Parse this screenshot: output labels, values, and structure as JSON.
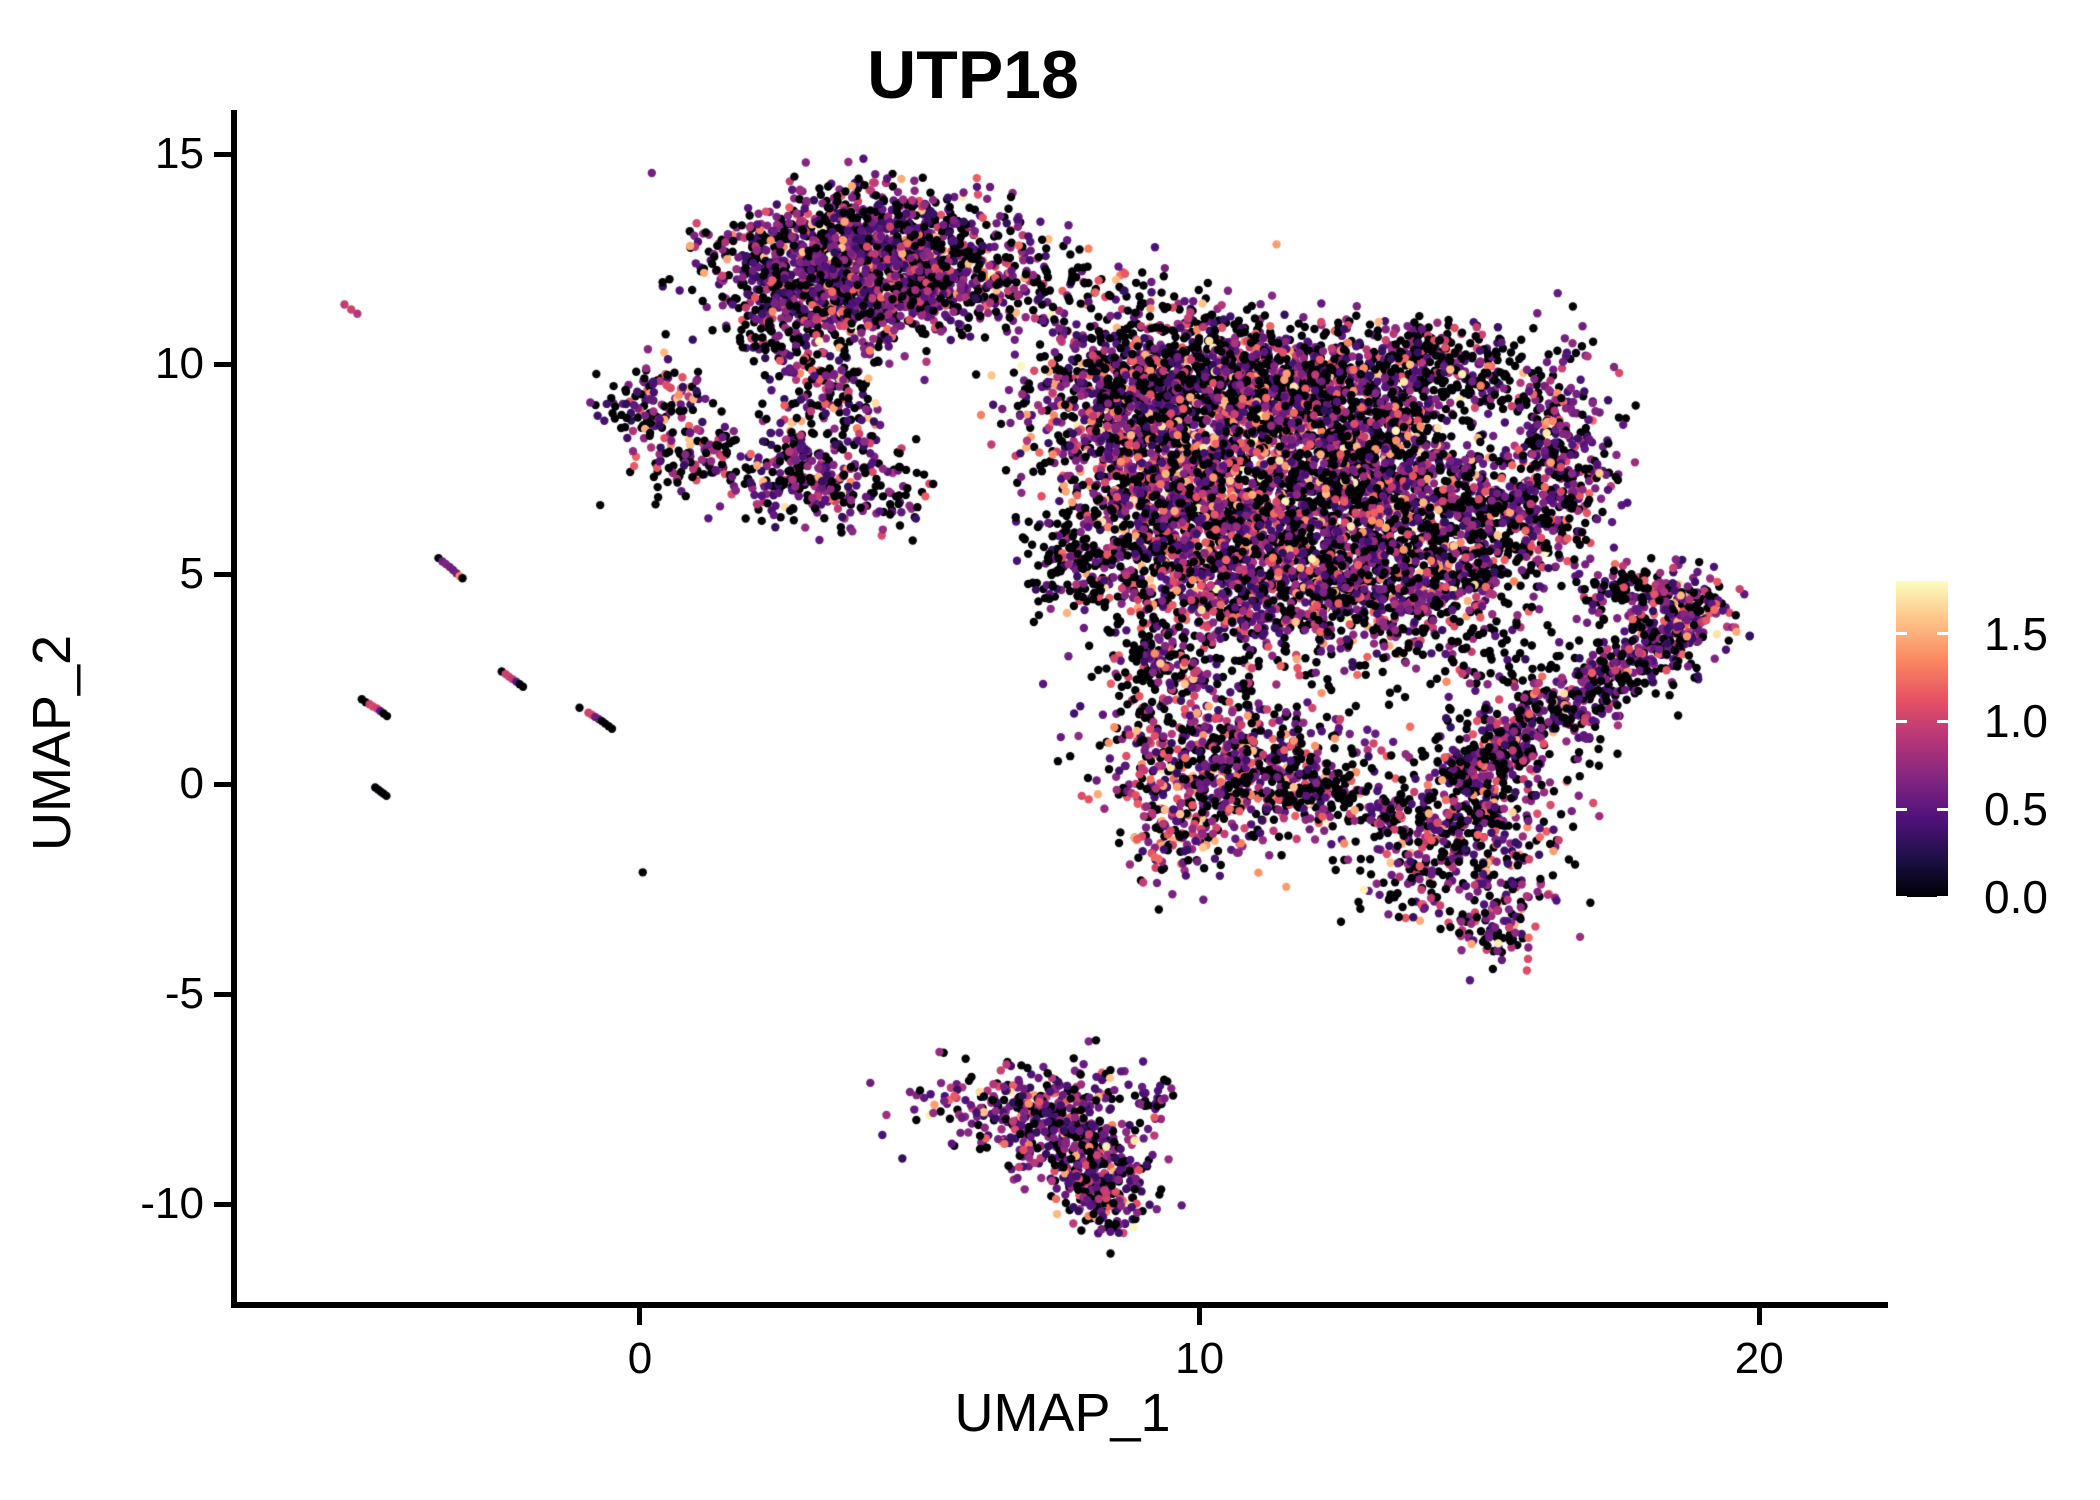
{
  "title": "UTP18",
  "axes": {
    "x": {
      "label": "UMAP_1",
      "tick_labels": [
        "0",
        "10",
        "20"
      ],
      "tick_values": [
        0,
        10,
        20
      ],
      "range": [
        -7.2,
        22.3
      ]
    },
    "y": {
      "label": "UMAP_2",
      "tick_labels": [
        "15",
        "10",
        "5",
        "0",
        "-5",
        "-10"
      ],
      "tick_values": [
        15,
        10,
        5,
        0,
        -5,
        -10
      ],
      "range": [
        -12.33,
        16.05
      ]
    }
  },
  "legend": {
    "tick_labels": [
      "1.5",
      "1.0",
      "0.5",
      "0.0"
    ],
    "tick_values": [
      1.5,
      1.0,
      0.5,
      0.0
    ],
    "domain": [
      0,
      1.8
    ],
    "colormap": "magma",
    "stops": [
      [
        0,
        "#000004"
      ],
      [
        0.125,
        "#1d1147"
      ],
      [
        0.25,
        "#51127c"
      ],
      [
        0.375,
        "#822681"
      ],
      [
        0.5,
        "#b63679"
      ],
      [
        0.625,
        "#e65164"
      ],
      [
        0.75,
        "#fb8861"
      ],
      [
        0.875,
        "#fec287"
      ],
      [
        1,
        "#fcfdbf"
      ]
    ]
  },
  "chart_data": {
    "type": "scatter",
    "title": "UTP18",
    "xlabel": "UMAP_1",
    "ylabel": "UMAP_2",
    "xlim": [
      -7.2,
      22.3
    ],
    "ylim": [
      -12.33,
      16.05
    ],
    "grid": false,
    "legend_position": "right",
    "point_radius_px": 4.2,
    "seed": 42,
    "value_bins": [
      [
        0.0,
        0.0
      ],
      [
        0.3,
        0.8
      ],
      [
        0.85,
        1.25
      ],
      [
        1.3,
        1.6
      ],
      [
        1.65,
        1.8
      ]
    ],
    "mixes": {
      "default": [
        0.44,
        0.37,
        0.13,
        0.05,
        0.01
      ],
      "dark": [
        0.62,
        0.29,
        0.07,
        0.02,
        0.0
      ],
      "purple": [
        0.33,
        0.5,
        0.12,
        0.04,
        0.01
      ],
      "hot": [
        0.35,
        0.35,
        0.2,
        0.08,
        0.02
      ]
    },
    "clusters": [
      {
        "name": "top-main-1",
        "t": "blob",
        "x": 3.2,
        "y": 12.6,
        "sx": 1.05,
        "sy": 0.72,
        "n": 650,
        "mix": "purple"
      },
      {
        "name": "top-main-2",
        "t": "blob",
        "x": 4.6,
        "y": 12.95,
        "sx": 0.95,
        "sy": 0.55,
        "n": 520,
        "mix": "purple"
      },
      {
        "name": "top-main-3",
        "t": "blob",
        "x": 3.3,
        "y": 11.45,
        "sx": 0.85,
        "sy": 0.55,
        "n": 330,
        "mix": "purple"
      },
      {
        "name": "top-main-4",
        "t": "blob",
        "x": 4.9,
        "y": 11.75,
        "sx": 0.9,
        "sy": 0.6,
        "n": 330,
        "mix": "purple"
      },
      {
        "name": "top-right-tail",
        "t": "blob",
        "x": 6.4,
        "y": 11.9,
        "sx": 0.95,
        "sy": 0.75,
        "n": 170,
        "mix": "default"
      },
      {
        "name": "top-lower-lobe",
        "t": "blob",
        "x": 3.35,
        "y": 9.4,
        "sx": 0.6,
        "sy": 0.85,
        "n": 210,
        "mix": "default"
      },
      {
        "name": "top-upper-fringe",
        "t": "blob",
        "x": 4.3,
        "y": 13.9,
        "sx": 0.7,
        "sy": 0.45,
        "n": 35,
        "mix": "dark"
      },
      {
        "name": "top-left-fringe",
        "t": "line",
        "x1": 1.8,
        "y1": 10.4,
        "x2": 2.6,
        "y2": 10.9,
        "w": 0.35,
        "n": 40,
        "mix": "dark"
      },
      {
        "name": "bridge-top-to-central",
        "t": "line",
        "x1": 6.3,
        "y1": 12.3,
        "x2": 10.7,
        "y2": 10.7,
        "w": 0.55,
        "n": 95,
        "mix": "dark"
      },
      {
        "name": "left-cluster-upper",
        "t": "blob",
        "x": 0.35,
        "y": 9.05,
        "sx": 0.55,
        "sy": 0.5,
        "n": 140,
        "mix": "default"
      },
      {
        "name": "left-cluster-lower",
        "t": "blob",
        "x": 0.9,
        "y": 7.6,
        "sx": 0.5,
        "sy": 0.38,
        "n": 75,
        "mix": "default"
      },
      {
        "name": "left-cluster-tail",
        "t": "line",
        "x1": 1.3,
        "y1": 8.3,
        "x2": 1.75,
        "y2": 8.0,
        "w": 0.25,
        "n": 18,
        "mix": "dark"
      },
      {
        "name": "mid-small-cluster",
        "t": "blob",
        "x": 3.15,
        "y": 7.3,
        "sx": 0.8,
        "sy": 0.6,
        "n": 270,
        "mix": "purple"
      },
      {
        "name": "mid-small-tail",
        "t": "blob",
        "x": 4.4,
        "y": 6.9,
        "sx": 0.45,
        "sy": 0.4,
        "n": 40,
        "mix": "dark"
      },
      {
        "name": "central-1",
        "t": "blob",
        "x": 8.6,
        "y": 9.3,
        "sx": 0.85,
        "sy": 0.9,
        "n": 520,
        "mix": "default"
      },
      {
        "name": "central-2",
        "t": "blob",
        "x": 10.3,
        "y": 9.7,
        "sx": 1.15,
        "sy": 0.75,
        "n": 850,
        "mix": "default"
      },
      {
        "name": "central-3",
        "t": "blob",
        "x": 12.3,
        "y": 9.1,
        "sx": 1.0,
        "sy": 0.75,
        "n": 680,
        "mix": "default"
      },
      {
        "name": "central-arc-ur",
        "t": "blob",
        "x": 14.5,
        "y": 9.9,
        "sx": 0.85,
        "sy": 0.55,
        "n": 240,
        "mix": "dark"
      },
      {
        "name": "central-hook-tip",
        "t": "blob",
        "x": 13.9,
        "y": 10.5,
        "sx": 0.35,
        "sy": 0.3,
        "n": 60,
        "mix": "dark"
      },
      {
        "name": "central-5",
        "t": "blob",
        "x": 9.4,
        "y": 7.3,
        "sx": 1.0,
        "sy": 1.0,
        "n": 780,
        "mix": "hot"
      },
      {
        "name": "central-6",
        "t": "blob",
        "x": 11.5,
        "y": 7.0,
        "sx": 1.2,
        "sy": 1.1,
        "n": 980,
        "mix": "hot"
      },
      {
        "name": "central-7",
        "t": "blob",
        "x": 13.4,
        "y": 7.3,
        "sx": 0.9,
        "sy": 0.95,
        "n": 580,
        "mix": "default"
      },
      {
        "name": "central-right-crescent",
        "t": "blob",
        "x": 16.35,
        "y": 7.9,
        "sx": 0.5,
        "sy": 1.25,
        "n": 380,
        "mix": "purple"
      },
      {
        "name": "central-9",
        "t": "blob",
        "x": 15.3,
        "y": 6.3,
        "sx": 0.7,
        "sy": 0.9,
        "n": 300,
        "mix": "default"
      },
      {
        "name": "central-10",
        "t": "blob",
        "x": 10.3,
        "y": 4.9,
        "sx": 1.05,
        "sy": 0.9,
        "n": 680,
        "mix": "hot"
      },
      {
        "name": "central-11",
        "t": "blob",
        "x": 12.5,
        "y": 4.7,
        "sx": 1.0,
        "sy": 0.9,
        "n": 600,
        "mix": "default"
      },
      {
        "name": "central-12",
        "t": "blob",
        "x": 14.2,
        "y": 5.2,
        "sx": 0.8,
        "sy": 1.0,
        "n": 440,
        "mix": "default"
      },
      {
        "name": "central-left-edge",
        "t": "blob",
        "x": 8.3,
        "y": 5.6,
        "sx": 0.6,
        "sy": 0.8,
        "n": 180,
        "mix": "dark"
      },
      {
        "name": "central-left-strays",
        "t": "blob",
        "x": 7.6,
        "y": 5.2,
        "sx": 0.5,
        "sy": 0.8,
        "n": 60,
        "mix": "dark"
      },
      {
        "name": "central-neck",
        "t": "line",
        "x1": 8.9,
        "y1": 3.4,
        "x2": 9.8,
        "y2": 2.2,
        "w": 0.45,
        "n": 110,
        "mix": "dark"
      },
      {
        "name": "lower-ext-1",
        "t": "blob",
        "x": 10.0,
        "y": 0.9,
        "sx": 0.95,
        "sy": 0.95,
        "n": 430,
        "mix": "hot"
      },
      {
        "name": "lower-ext-2",
        "t": "blob",
        "x": 11.4,
        "y": 0.15,
        "sx": 0.9,
        "sy": 0.8,
        "n": 340,
        "mix": "default"
      },
      {
        "name": "lower-ext-tip",
        "t": "blob",
        "x": 9.6,
        "y": -1.2,
        "sx": 0.55,
        "sy": 0.6,
        "n": 150,
        "mix": "hot"
      },
      {
        "name": "lower-right-lobe",
        "t": "blob",
        "x": 14.6,
        "y": -1.4,
        "sx": 1.0,
        "sy": 1.05,
        "n": 520,
        "mix": "default"
      },
      {
        "name": "lobe-tip",
        "t": "blob",
        "x": 15.4,
        "y": -3.4,
        "sx": 0.4,
        "sy": 0.5,
        "n": 70,
        "mix": "purple"
      },
      {
        "name": "bridge-lower",
        "t": "line",
        "x1": 11.2,
        "y1": 0.3,
        "x2": 13.6,
        "y2": -0.9,
        "w": 0.35,
        "n": 90,
        "mix": "dark"
      },
      {
        "name": "connector-wing",
        "t": "blob",
        "x": 15.6,
        "y": 2.3,
        "sx": 0.75,
        "sy": 0.8,
        "n": 130,
        "mix": "dark"
      },
      {
        "name": "wing-main",
        "t": "line",
        "x1": 14.5,
        "y1": 0.1,
        "x2": 19.3,
        "y2": 4.35,
        "w": 0.33,
        "n": 620,
        "mix": "purple"
      },
      {
        "name": "wing-fringe",
        "t": "line",
        "x1": 14.7,
        "y1": -0.4,
        "x2": 18.6,
        "y2": 3.2,
        "w": 0.55,
        "n": 140,
        "mix": "dark"
      },
      {
        "name": "wing-hook",
        "t": "blob",
        "x": 18.35,
        "y": 4.55,
        "sx": 0.45,
        "sy": 0.38,
        "n": 120,
        "mix": "purple"
      },
      {
        "name": "wing-top-arc",
        "t": "line",
        "x1": 16.9,
        "y1": 4.3,
        "x2": 18.0,
        "y2": 4.9,
        "w": 0.25,
        "n": 60,
        "mix": "dark"
      },
      {
        "name": "bottom-1",
        "t": "blob",
        "x": 6.9,
        "y": -7.6,
        "sx": 0.95,
        "sy": 0.5,
        "n": 270,
        "mix": "purple"
      },
      {
        "name": "bottom-2",
        "t": "blob",
        "x": 7.7,
        "y": -8.5,
        "sx": 0.7,
        "sy": 0.5,
        "n": 240,
        "mix": "purple"
      },
      {
        "name": "bottom-3",
        "t": "blob",
        "x": 8.2,
        "y": -9.4,
        "sx": 0.5,
        "sy": 0.45,
        "n": 170,
        "mix": "purple"
      },
      {
        "name": "bottom-tip",
        "t": "blob",
        "x": 8.35,
        "y": -10.15,
        "sx": 0.3,
        "sy": 0.28,
        "n": 60,
        "mix": "purple"
      },
      {
        "name": "bottom-tail",
        "t": "line",
        "x1": 8.9,
        "y1": -7.6,
        "x2": 9.55,
        "y2": -7.1,
        "w": 0.18,
        "n": 22,
        "mix": "dark"
      }
    ],
    "streaks": [
      {
        "name": "pink-pair",
        "pts": [
          [
            -5.28,
            11.42,
            0.95
          ],
          [
            -5.16,
            11.3,
            1.0
          ],
          [
            -5.05,
            11.2,
            0.9
          ]
        ]
      },
      {
        "name": "streak-a",
        "pts": [
          [
            -3.6,
            5.38,
            0
          ],
          [
            -3.53,
            5.3,
            0.6
          ],
          [
            -3.47,
            5.24,
            0.65
          ],
          [
            -3.4,
            5.17,
            0.62
          ],
          [
            -3.34,
            5.1,
            0.58
          ],
          [
            -3.28,
            5.02,
            0.6
          ],
          [
            -3.22,
            4.95,
            1.35
          ],
          [
            -3.17,
            4.9,
            0
          ]
        ]
      },
      {
        "name": "streak-b",
        "pts": [
          [
            -4.97,
            2.02,
            0
          ],
          [
            -4.9,
            1.95,
            0
          ],
          [
            -4.83,
            1.9,
            1.0
          ],
          [
            -4.77,
            1.85,
            1.05
          ],
          [
            -4.7,
            1.8,
            1.0
          ],
          [
            -4.64,
            1.74,
            0.5
          ],
          [
            -4.58,
            1.68,
            0
          ],
          [
            -4.52,
            1.62,
            0
          ]
        ]
      },
      {
        "name": "streak-c",
        "pts": [
          [
            -2.47,
            2.68,
            0
          ],
          [
            -2.4,
            2.62,
            1.0
          ],
          [
            -2.34,
            2.56,
            1.0
          ],
          [
            -2.28,
            2.5,
            0.95
          ],
          [
            -2.21,
            2.44,
            0.5
          ],
          [
            -2.15,
            2.38,
            0
          ],
          [
            -2.09,
            2.32,
            0
          ]
        ]
      },
      {
        "name": "streak-d",
        "pts": [
          [
            -1.08,
            1.82,
            0
          ],
          [
            -0.92,
            1.7,
            1.0
          ],
          [
            -0.86,
            1.65,
            1.05
          ],
          [
            -0.8,
            1.6,
            0.6
          ],
          [
            -0.74,
            1.55,
            0.55
          ],
          [
            -0.68,
            1.5,
            0
          ],
          [
            -0.62,
            1.44,
            0
          ],
          [
            -0.56,
            1.38,
            0
          ],
          [
            -0.5,
            1.32,
            0
          ]
        ]
      },
      {
        "name": "black-streak",
        "pts": [
          [
            -4.73,
            -0.08,
            0
          ],
          [
            -4.68,
            -0.13,
            0
          ],
          [
            -4.63,
            -0.18,
            0
          ],
          [
            -4.58,
            -0.23,
            0
          ],
          [
            -4.53,
            -0.28,
            0
          ]
        ]
      },
      {
        "name": "lone-dot",
        "pts": [
          [
            0.05,
            -2.1,
            0
          ]
        ]
      }
    ]
  }
}
